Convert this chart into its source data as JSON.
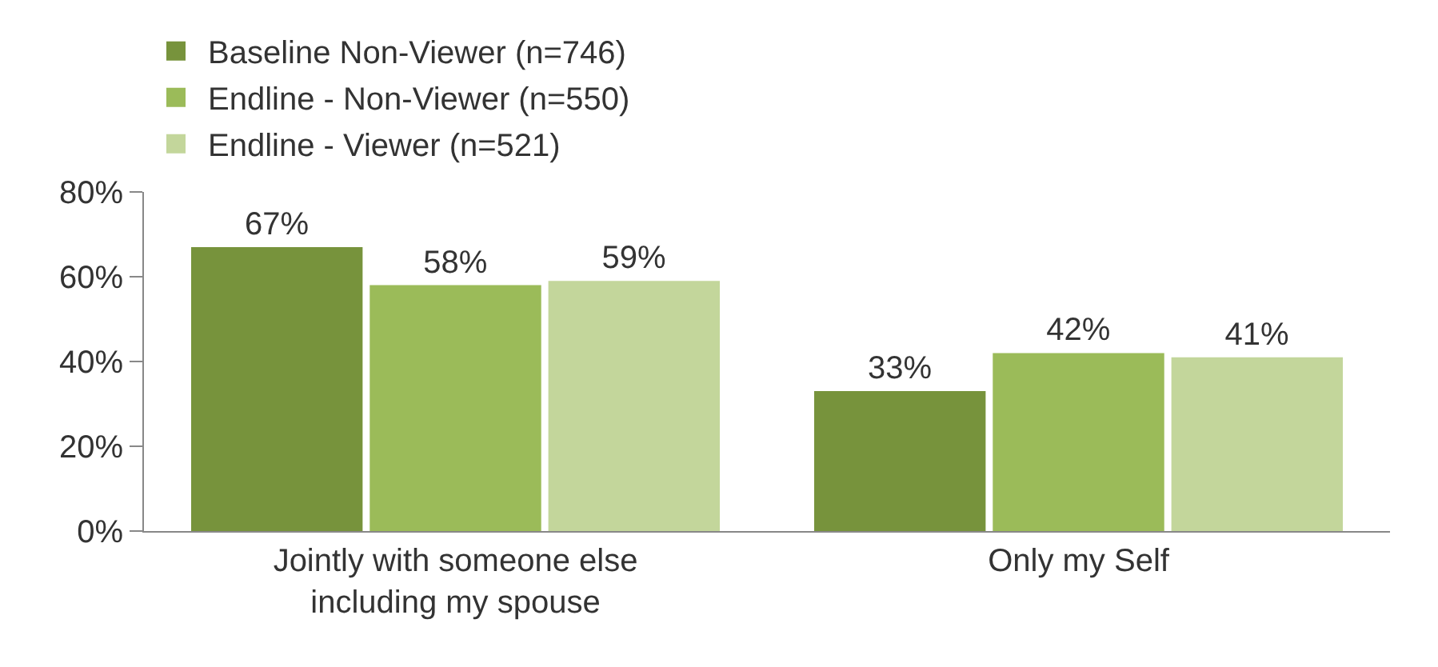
{
  "chart_data": {
    "type": "bar",
    "categories": [
      "Jointly with someone else including my spouse",
      "Only my Self"
    ],
    "series": [
      {
        "name": "Baseline Non-Viewer (n=746)",
        "color": "#77933c",
        "values": [
          67,
          33
        ],
        "value_labels": [
          "67%",
          "33%"
        ]
      },
      {
        "name": "Endline - Non-Viewer (n=550)",
        "color": "#9bbb59",
        "values": [
          58,
          42
        ],
        "value_labels": [
          "58%",
          "42%"
        ]
      },
      {
        "name": "Endline - Viewer (n=521)",
        "color": "#c3d69b",
        "values": [
          59,
          41
        ],
        "value_labels": [
          "59%",
          "41%"
        ]
      }
    ],
    "ylim": [
      0,
      80
    ],
    "yticks": [
      {
        "value": 0,
        "label": "0%"
      },
      {
        "value": 20,
        "label": "20%"
      },
      {
        "value": 40,
        "label": "40%"
      },
      {
        "value": 60,
        "label": "60%"
      },
      {
        "value": 80,
        "label": "80%"
      }
    ],
    "grid": false,
    "legend": "top left"
  }
}
